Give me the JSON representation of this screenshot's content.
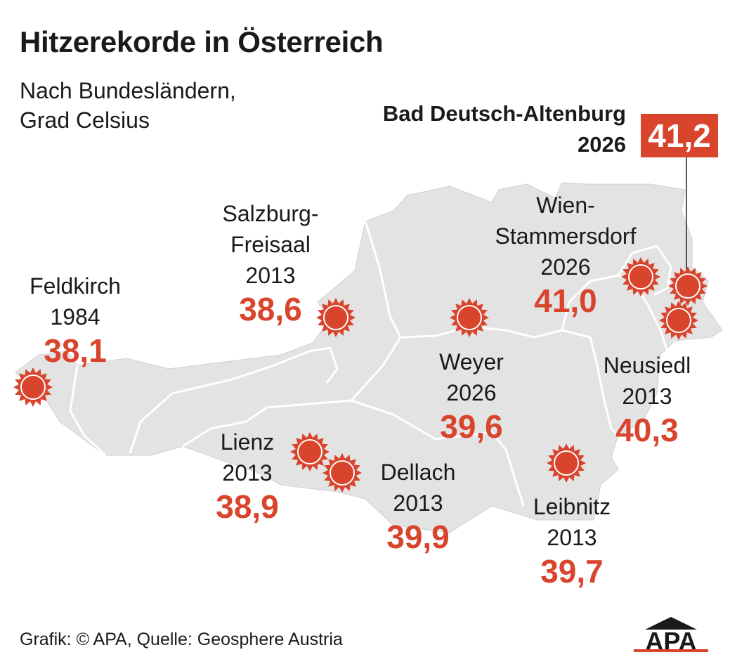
{
  "title": "Hitzerekorde in Österreich",
  "subtitle_line1": "Nach Bundesländern,",
  "subtitle_line2": "Grad Celsius",
  "highlight": {
    "place": "Bad Deutsch-Altenburg",
    "year": "2026",
    "value": "41,2"
  },
  "stations": [
    {
      "id": "feldkirch",
      "name": [
        "Feldkirch"
      ],
      "year": "1984",
      "value": "38,1"
    },
    {
      "id": "salzburg",
      "name": [
        "Salzburg-",
        "Freisaal"
      ],
      "year": "2013",
      "value": "38,6"
    },
    {
      "id": "wien",
      "name": [
        "Wien-",
        "Stammersdorf"
      ],
      "year": "2026",
      "value": "41,0"
    },
    {
      "id": "weyer",
      "name": [
        "Weyer"
      ],
      "year": "2026",
      "value": "39,6"
    },
    {
      "id": "neusiedl",
      "name": [
        "Neusiedl"
      ],
      "year": "2013",
      "value": "40,3"
    },
    {
      "id": "lienz",
      "name": [
        "Lienz"
      ],
      "year": "2013",
      "value": "38,9"
    },
    {
      "id": "dellach",
      "name": [
        "Dellach"
      ],
      "year": "2013",
      "value": "39,9"
    },
    {
      "id": "leibnitz",
      "name": [
        "Leibnitz"
      ],
      "year": "2013",
      "value": "39,7"
    }
  ],
  "footer": "Grafik: © APA, Quelle: Geosphere Austria",
  "logo_text": "APA",
  "colors": {
    "accent": "#d9442c",
    "map_fill": "#e3e3e3",
    "border": "#ffffff"
  },
  "icons": {
    "marker": "sun-icon"
  }
}
